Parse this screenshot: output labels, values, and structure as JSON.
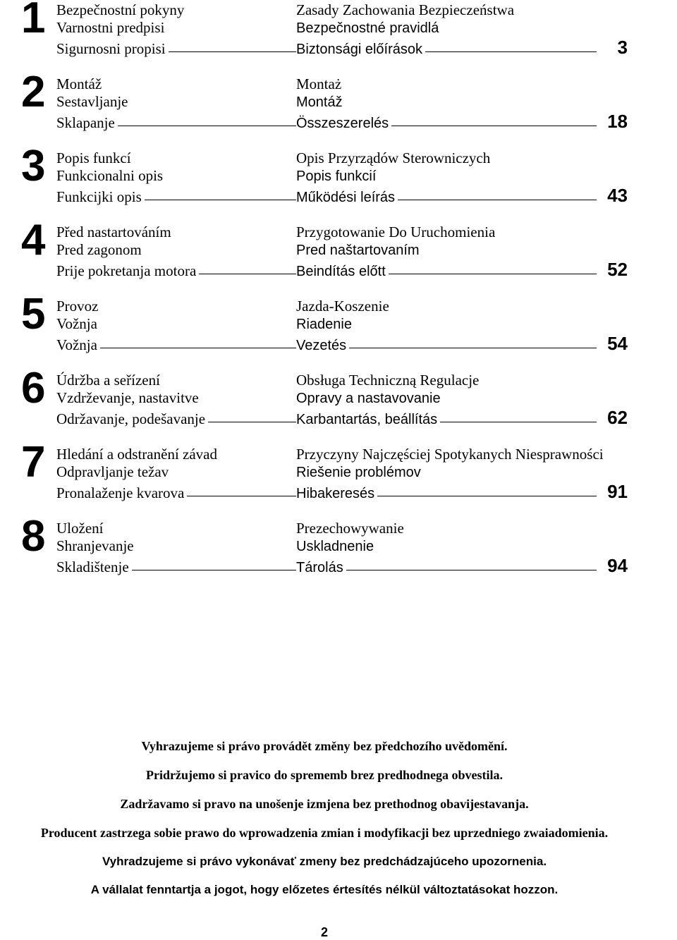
{
  "sections": [
    {
      "num": "1",
      "page": "3",
      "rows": [
        {
          "left": "Bezpečnostní pokyny",
          "right": "Zasady Zachowania Bezpieczeństwa",
          "leftSans": false,
          "rightSans": false
        },
        {
          "left": "Varnostni predpisi",
          "right": "Bezpečnostné pravidlá",
          "leftSans": false,
          "rightSans": true
        },
        {
          "left": "Sigurnosni propisi",
          "right": "Biztonsági előírások",
          "leftSans": false,
          "rightSans": true
        }
      ]
    },
    {
      "num": "2",
      "page": "18",
      "rows": [
        {
          "left": "Montáž",
          "right": "Montaż",
          "leftSans": false,
          "rightSans": false
        },
        {
          "left": "Sestavljanje",
          "right": "Montáž",
          "leftSans": false,
          "rightSans": true
        },
        {
          "left": "Sklapanje",
          "right": "Összeszerelés",
          "leftSans": false,
          "rightSans": true
        }
      ]
    },
    {
      "num": "3",
      "page": "43",
      "rows": [
        {
          "left": "Popis funkcí",
          "right": "Opis Przyrządów Sterowniczych",
          "leftSans": false,
          "rightSans": false
        },
        {
          "left": "Funkcionalni opis",
          "right": "Popis funkcií",
          "leftSans": false,
          "rightSans": true
        },
        {
          "left": "Funkcijki opis",
          "right": "Működési leírás",
          "leftSans": false,
          "rightSans": true
        }
      ]
    },
    {
      "num": "4",
      "page": "52",
      "rows": [
        {
          "left": "Před nastartováním",
          "right": "Przygotowanie Do Uruchomienia",
          "leftSans": false,
          "rightSans": false
        },
        {
          "left": "Pred zagonom",
          "right": "Pred naštartovaním",
          "leftSans": false,
          "rightSans": true
        },
        {
          "left": "Prije pokretanja motora",
          "right": "Beindítás előtt",
          "leftSans": false,
          "rightSans": true
        }
      ]
    },
    {
      "num": "5",
      "page": "54",
      "rows": [
        {
          "left": "Provoz",
          "right": "Jazda-Koszenie",
          "leftSans": false,
          "rightSans": false
        },
        {
          "left": "Vožnja",
          "right": "Riadenie",
          "leftSans": false,
          "rightSans": true
        },
        {
          "left": "Vožnja",
          "right": "Vezetés",
          "leftSans": false,
          "rightSans": true
        }
      ]
    },
    {
      "num": "6",
      "page": "62",
      "rows": [
        {
          "left": "Údržba a seřízení",
          "right": "Obsługa Techniczną Regulacje",
          "leftSans": false,
          "rightSans": false
        },
        {
          "left": "Vzdrževanje, nastavitve",
          "right": "Opravy a nastavovanie",
          "leftSans": false,
          "rightSans": true
        },
        {
          "left": "Održavanje, podešavanje",
          "right": "Karbantartás, beállítás",
          "leftSans": false,
          "rightSans": true
        }
      ]
    },
    {
      "num": "7",
      "page": "91",
      "rows": [
        {
          "left": "Hledání a odstranění závad",
          "right": "Przyczyny Najczęściej Spotykanych Niesprawności",
          "leftSans": false,
          "rightSans": false
        },
        {
          "left": "Odpravljanje težav",
          "right": "Riešenie problémov",
          "leftSans": false,
          "rightSans": true
        },
        {
          "left": "Pronalaženje kvarova",
          "right": "Hibakeresés",
          "leftSans": false,
          "rightSans": true
        }
      ]
    },
    {
      "num": "8",
      "page": "94",
      "rows": [
        {
          "left": "Uložení",
          "right": "Prezechowywanie",
          "leftSans": false,
          "rightSans": false
        },
        {
          "left": "Shranjevanje",
          "right": "Uskladnenie",
          "leftSans": false,
          "rightSans": true
        },
        {
          "left": "Skladištenje",
          "right": "Tárolás",
          "leftSans": false,
          "rightSans": true
        }
      ]
    }
  ],
  "disclaimers": [
    {
      "text": "Vyhrazujeme si právo provádět změny bez předchozího uvědomění.",
      "sans": false
    },
    {
      "text": "Pridržujemo si pravico do sprememb brez predhodnega obvestila.",
      "sans": false
    },
    {
      "text": "Zadržavamo si pravo na unošenje izmjena bez prethodnog obavijestavanja.",
      "sans": false
    },
    {
      "text": "Producent zastrzega sobie prawo do wprowadzenia zmian i modyfikacji bez uprzedniego zwaiadomienia.",
      "sans": false
    },
    {
      "text": "Vyhradzujeme si právo vykonávať zmeny bez predchádzajúceho upozornenia.",
      "sans": true
    },
    {
      "text": "A vállalat fenntartja a jogot, hogy előzetes értesítés nélkül változtatásokat hozzon.",
      "sans": true
    }
  ],
  "footerPage": "2"
}
